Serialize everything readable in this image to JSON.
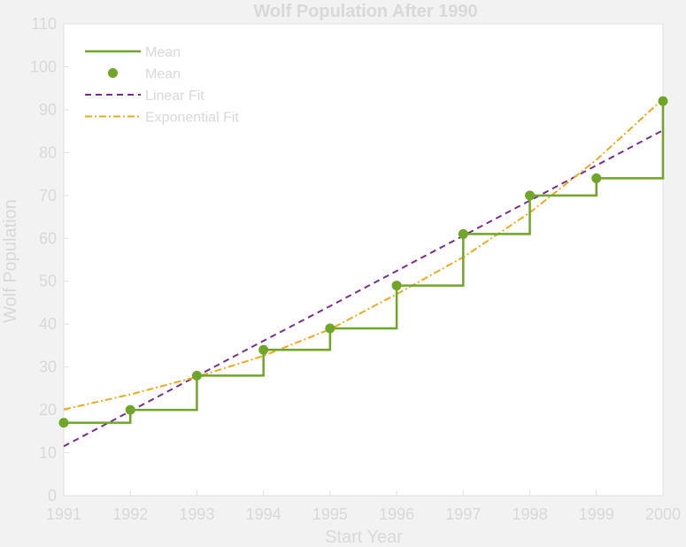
{
  "chart_data": {
    "type": "line",
    "title": "Wolf Population After 1990",
    "xlabel": "Start Year",
    "ylabel": "Wolf Population",
    "xlim": [
      1991,
      2000
    ],
    "ylim": [
      0,
      110
    ],
    "x_ticks": [
      "1991",
      "1992",
      "1993",
      "1994",
      "1995",
      "1996",
      "1997",
      "1998",
      "1999",
      "2000"
    ],
    "y_ticks": [
      "0",
      "10",
      "20",
      "30",
      "40",
      "50",
      "60",
      "70",
      "80",
      "90",
      "100",
      "110"
    ],
    "x": [
      1991,
      1992,
      1993,
      1994,
      1995,
      1996,
      1997,
      1998,
      1999,
      2000
    ],
    "grid": false,
    "legend_position": "top-left",
    "series": [
      {
        "name": "Mean",
        "style": "step",
        "color": "#6fa62a",
        "values": [
          17,
          20,
          28,
          34,
          39,
          49,
          61,
          70,
          74,
          92
        ]
      },
      {
        "name": "Mean",
        "style": "markers",
        "color": "#6fa62a",
        "values": [
          17,
          20,
          28,
          34,
          39,
          49,
          61,
          70,
          74,
          92
        ]
      },
      {
        "name": "Linear Fit",
        "style": "dashed",
        "color": "#7b2d8e",
        "values": [
          11.5,
          19.7,
          27.9,
          36.1,
          44.2,
          52.4,
          60.6,
          68.8,
          77.0,
          85.2
        ]
      },
      {
        "name": "Exponential Fit",
        "style": "dashdot",
        "color": "#f0a820",
        "values": [
          20.1,
          23.6,
          27.7,
          32.6,
          38.8,
          47.0,
          55.6,
          66.0,
          78.3,
          92.5
        ]
      }
    ]
  },
  "colors": {
    "background": "#f2f2f2",
    "plot_area": "#ffffff",
    "axis": "#e0e0e0",
    "text": "#d9d9d9"
  }
}
